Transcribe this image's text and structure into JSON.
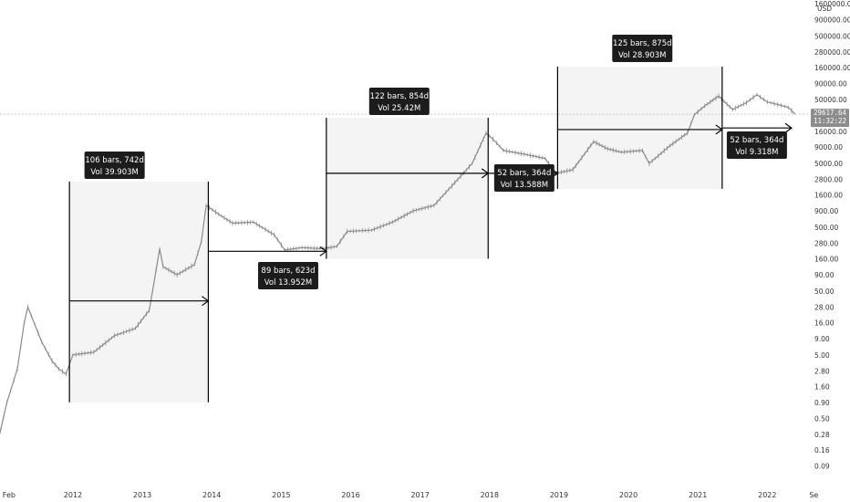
{
  "chart_data": {
    "type": "line",
    "title": "",
    "xlabel": "",
    "ylabel": "",
    "yscale": "log",
    "ylim": [
      0.06,
      1600000
    ],
    "xlim": [
      2010.95,
      2022.6
    ],
    "currency": "USD",
    "grid": false,
    "legend": "none",
    "y_ticks": [
      "1600000.00",
      "900000.00",
      "500000.00",
      "280000.00",
      "160000.00",
      "90000.00",
      "50000.00",
      "28000.00",
      "16000.00",
      "9000.00",
      "5000.00",
      "2800.00",
      "1600.00",
      "900.00",
      "500.00",
      "280.00",
      "160.00",
      "90.00",
      "50.00",
      "28.00",
      "16.00",
      "9.00",
      "5.00",
      "2.80",
      "1.60",
      "0.90",
      "0.50",
      "0.28",
      "0.16",
      "0.09"
    ],
    "y_tick_values": [
      1600000,
      900000,
      500000,
      280000,
      160000,
      90000,
      50000,
      28000,
      16000,
      9000,
      5000,
      2800,
      1600,
      900,
      500,
      280,
      160,
      90,
      50,
      28,
      16,
      9,
      5,
      2.8,
      1.6,
      0.9,
      0.5,
      0.28,
      0.16,
      0.09
    ],
    "x_ticks": [
      "Feb",
      "2012",
      "2013",
      "2014",
      "2015",
      "2016",
      "2017",
      "2018",
      "2019",
      "2020",
      "2021",
      "2022",
      "Se"
    ],
    "x_tick_values": [
      2011.08,
      2012,
      2013,
      2014,
      2015,
      2016,
      2017,
      2018,
      2019,
      2020,
      2021,
      2022,
      2022.67
    ],
    "series": [
      {
        "name": "",
        "x": [
          2010.95,
          2011.05,
          2011.2,
          2011.3,
          2011.35,
          2011.45,
          2011.55,
          2011.7,
          2011.8,
          2011.9,
          2012.0,
          2012.3,
          2012.6,
          2012.9,
          2013.1,
          2013.25,
          2013.3,
          2013.5,
          2013.75,
          2013.85,
          2013.92,
          2014.1,
          2014.3,
          2014.6,
          2014.9,
          2015.05,
          2015.3,
          2015.6,
          2015.8,
          2015.95,
          2016.3,
          2016.6,
          2016.9,
          2017.2,
          2017.5,
          2017.75,
          2017.95,
          2018.05,
          2018.2,
          2018.5,
          2018.8,
          2018.95,
          2019.2,
          2019.5,
          2019.7,
          2019.9,
          2020.2,
          2020.3,
          2020.6,
          2020.85,
          2020.95,
          2021.1,
          2021.3,
          2021.5,
          2021.7,
          2021.85,
          2022.0,
          2022.15,
          2022.3,
          2022.4
        ],
        "values": [
          0.3,
          0.9,
          3.0,
          16,
          28,
          15,
          8,
          4,
          3,
          2.5,
          5,
          5.5,
          10,
          13,
          25,
          230,
          120,
          90,
          130,
          300,
          1100,
          800,
          580,
          600,
          380,
          220,
          240,
          230,
          250,
          430,
          450,
          600,
          900,
          1100,
          2500,
          5000,
          15000,
          12000,
          8000,
          7000,
          6000,
          3500,
          4000,
          11000,
          8500,
          7500,
          8000,
          5000,
          9500,
          15000,
          29000,
          40000,
          57000,
          35000,
          45000,
          60000,
          46000,
          42000,
          38000,
          29617
        ]
      }
    ],
    "annotations": [
      {
        "label": "106 bars, 742d",
        "vol": "Vol 39.903M",
        "x_start": 2011.95,
        "x_end": 2013.95,
        "y_low": 0.9,
        "y_high": 2600,
        "arrow_y": 35
      },
      {
        "label": "89 bars, 623d",
        "vol": "Vol 13.952M",
        "x_start": 2013.95,
        "x_end": 2015.65,
        "y_low": null,
        "y_high": null,
        "arrow_y": 210
      },
      {
        "label": "122 bars, 854d",
        "vol": "Vol 25.42M",
        "x_start": 2015.65,
        "x_end": 2017.98,
        "y_low": 160,
        "y_high": 26000,
        "arrow_y": 3500
      },
      {
        "label": "52 bars, 364d",
        "vol": "Vol 13.588M",
        "x_start": 2017.98,
        "x_end": 2018.98,
        "y_low": null,
        "y_high": null,
        "arrow_y": 3500
      },
      {
        "label": "125 bars, 875d",
        "vol": "Vol 28.903M",
        "x_start": 2018.98,
        "x_end": 2021.35,
        "y_low": 2000,
        "y_high": 165000,
        "arrow_y": 17000
      },
      {
        "label": "52 bars, 364d",
        "vol": "Vol 9.318M",
        "x_start": 2021.35,
        "x_end": 2022.35,
        "y_low": null,
        "y_high": null,
        "arrow_y": 18000
      }
    ],
    "last_price": "29617.64",
    "countdown": "11:32:22",
    "colors": {
      "line": "#8a8a8a",
      "arrow": "#000000",
      "box_fill": "#1c1c1c",
      "shade": "#f4f4f4",
      "price_box": "#8c8c8c",
      "price_line": "#c8c8c8"
    }
  }
}
